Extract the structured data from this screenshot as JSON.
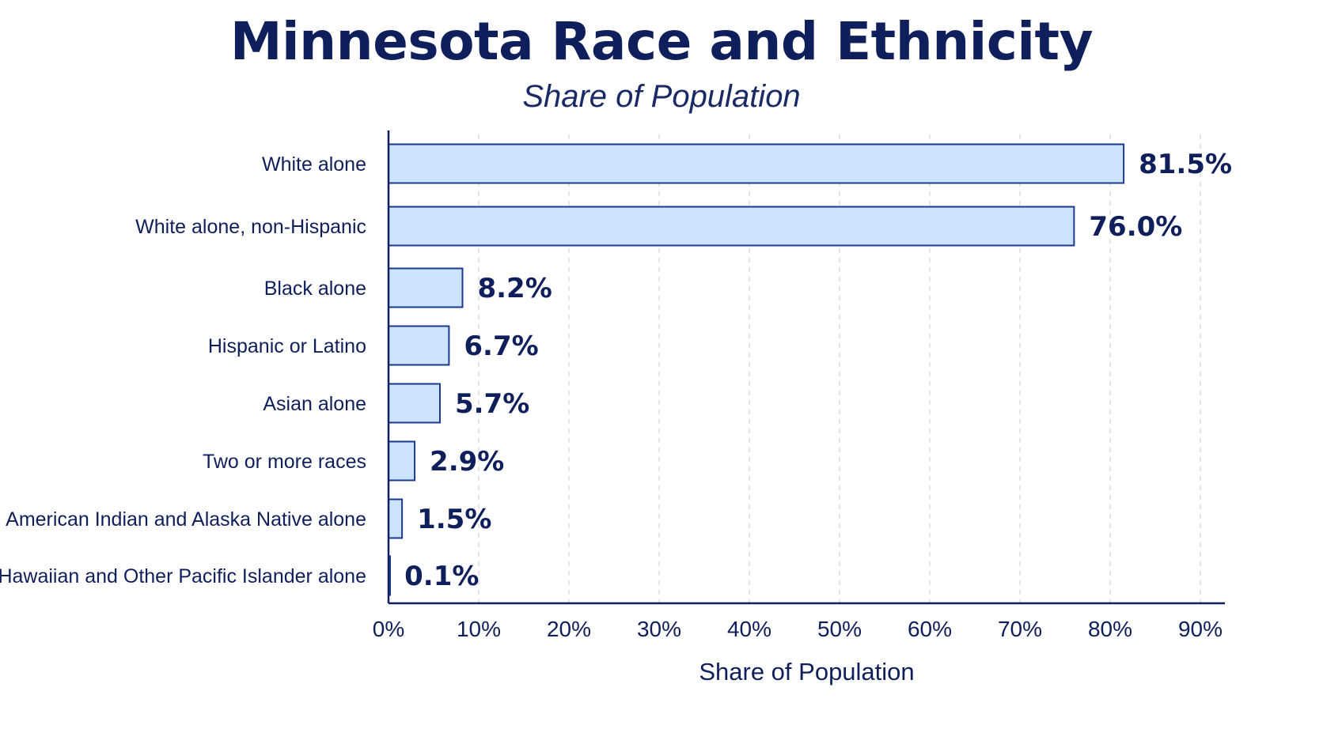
{
  "chart_data": {
    "type": "bar",
    "orientation": "horizontal",
    "title": "Minnesota Race and Ethnicity",
    "subtitle": "Share of Population",
    "xlabel": "Share of Population",
    "ylabel": "",
    "categories": [
      "White alone",
      "White alone, non-Hispanic",
      "Black alone",
      "Hispanic or Latino",
      "Asian alone",
      "Two or more races",
      "American Indian and Alaska Native alone",
      "Native Hawaiian and Other Pacific Islander alone"
    ],
    "values": [
      81.5,
      76.0,
      8.2,
      6.7,
      5.7,
      2.9,
      1.5,
      0.1
    ],
    "value_labels": [
      "81.5%",
      "76.0%",
      "8.2%",
      "6.7%",
      "5.7%",
      "2.9%",
      "1.5%",
      "0.1%"
    ],
    "xlim": [
      0,
      90
    ],
    "xticks": [
      0,
      10,
      20,
      30,
      40,
      50,
      60,
      70,
      80,
      90
    ],
    "xtick_labels": [
      "0%",
      "10%",
      "20%",
      "30%",
      "40%",
      "50%",
      "60%",
      "70%",
      "80%",
      "90%"
    ],
    "grid": "vertical dashed",
    "legend": "none",
    "colors": {
      "bar_fill": "#cce3fb",
      "bar_stroke": "#1a3a8f",
      "text": "#0f1f5c",
      "axis": "#0f1f5c",
      "grid": "#d4d4d4"
    }
  }
}
